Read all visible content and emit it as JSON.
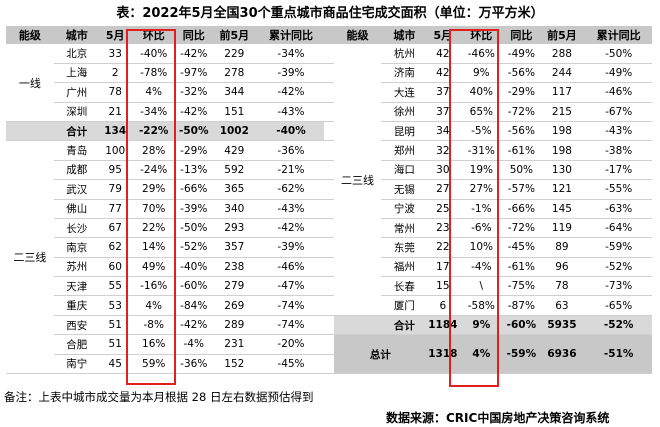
{
  "title": "表：2022年5月全国30个重点城市商品住宅成交面积（单位：万平方米）",
  "headers": [
    "能级",
    "城市",
    "5月",
    "环比",
    "同比",
    "前5月",
    "累计同比"
  ],
  "left_tier1_label": "一线",
  "left_tier1": [
    [
      "北京",
      "33",
      "-40%",
      "-42%",
      "229",
      "-34%"
    ],
    [
      "上海",
      "2",
      "-78%",
      "-97%",
      "278",
      "-39%"
    ],
    [
      "广州",
      "78",
      "4%",
      "-32%",
      "344",
      "-42%"
    ],
    [
      "深圳",
      "21",
      "-34%",
      "-42%",
      "151",
      "-43%"
    ]
  ],
  "left_tier1_sum": [
    "合计",
    "134",
    "-22%",
    "-50%",
    "1002",
    "-40%"
  ],
  "left_tier2_label": "二三线",
  "left_tier2": [
    [
      "青岛",
      "100",
      "28%",
      "-29%",
      "429",
      "-36%"
    ],
    [
      "成都",
      "95",
      "-24%",
      "-13%",
      "592",
      "-21%"
    ],
    [
      "武汉",
      "79",
      "29%",
      "-66%",
      "365",
      "-62%"
    ],
    [
      "佛山",
      "77",
      "70%",
      "-39%",
      "340",
      "-43%"
    ],
    [
      "长沙",
      "67",
      "22%",
      "-50%",
      "293",
      "-42%"
    ],
    [
      "南京",
      "62",
      "14%",
      "-52%",
      "357",
      "-39%"
    ],
    [
      "苏州",
      "60",
      "49%",
      "-40%",
      "238",
      "-46%"
    ],
    [
      "天津",
      "55",
      "-16%",
      "-60%",
      "279",
      "-47%"
    ],
    [
      "重庆",
      "53",
      "4%",
      "-84%",
      "269",
      "-74%"
    ],
    [
      "西安",
      "51",
      "-8%",
      "-42%",
      "289",
      "-74%"
    ],
    [
      "合肥",
      "51",
      "16%",
      "-4%",
      "231",
      "-20%"
    ],
    [
      "南宁",
      "45",
      "59%",
      "-36%",
      "152",
      "-45%"
    ]
  ],
  "right_tier_label": "二三线",
  "right_rows": [
    [
      "杭州",
      "42",
      "-46%",
      "-49%",
      "288",
      "-50%"
    ],
    [
      "济南",
      "42",
      "9%",
      "-56%",
      "244",
      "-49%"
    ],
    [
      "大连",
      "37",
      "40%",
      "-29%",
      "117",
      "-46%"
    ],
    [
      "徐州",
      "37",
      "65%",
      "-72%",
      "215",
      "-67%"
    ],
    [
      "昆明",
      "34",
      "-5%",
      "-56%",
      "198",
      "-43%"
    ],
    [
      "郑州",
      "32",
      "-31%",
      "-61%",
      "198",
      "-38%"
    ],
    [
      "海口",
      "30",
      "19%",
      "50%",
      "130",
      "-17%"
    ],
    [
      "无锡",
      "27",
      "27%",
      "-57%",
      "121",
      "-55%"
    ],
    [
      "宁波",
      "25",
      "-1%",
      "-66%",
      "145",
      "-63%"
    ],
    [
      "常州",
      "23",
      "-6%",
      "-72%",
      "119",
      "-64%"
    ],
    [
      "东莞",
      "22",
      "10%",
      "-45%",
      "89",
      "-59%"
    ],
    [
      "福州",
      "17",
      "-4%",
      "-61%",
      "96",
      "-52%"
    ],
    [
      "长春",
      "15",
      "\\",
      "-75%",
      "78",
      "-73%"
    ],
    [
      "厦门",
      "6",
      "-58%",
      "-87%",
      "63",
      "-65%"
    ]
  ],
  "right_sum": [
    "合计",
    "1184",
    "9%",
    "-60%",
    "5935",
    "-52%"
  ],
  "grand_total": [
    "总计",
    "1318",
    "4%",
    "-59%",
    "6936",
    "-51%"
  ],
  "note": "备注：上表中城市成交量为本月根据 28 日左右数据预估得到",
  "source": "数据来源：CRIC中国房地产决策咨询系统",
  "colors": {
    "header_bg": "#c8c8c8",
    "sum_bg": "#d9d9d9",
    "highlight_box": "#e0201c"
  }
}
